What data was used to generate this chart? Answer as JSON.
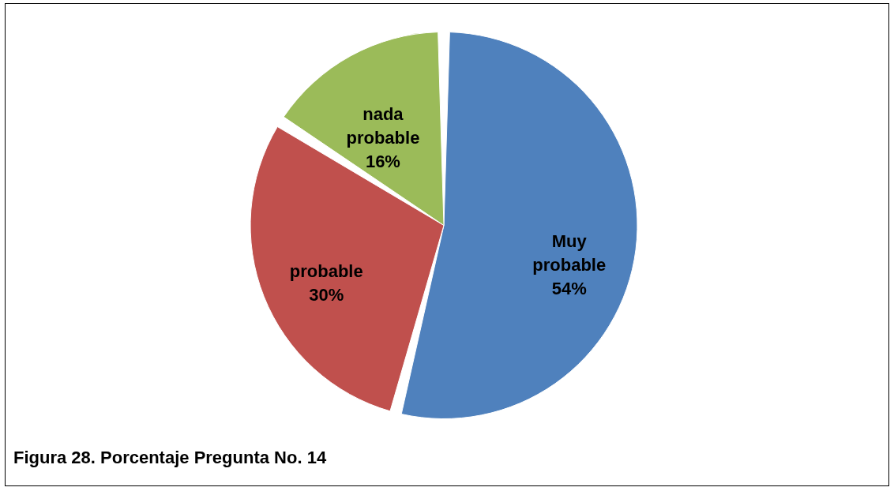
{
  "chart_data": {
    "type": "pie",
    "categories": [
      "Muy probable",
      "probable",
      "nada probable"
    ],
    "values": [
      54,
      30,
      16
    ],
    "value_labels": [
      "54%",
      "30%",
      "16%"
    ],
    "colors": [
      "#4f81bd",
      "#c0504d",
      "#9bbb59"
    ],
    "legend": false,
    "annotations": [
      "Figura 28.  Porcentaje Pregunta No.  14"
    ]
  }
}
